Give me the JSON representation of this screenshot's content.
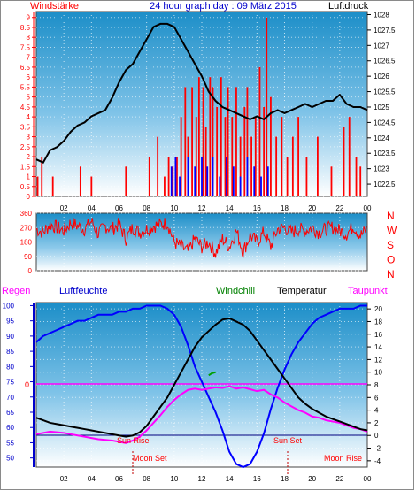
{
  "chart_data": [
    {
      "type": "line",
      "title": "24 hour graph day : 09 März 2015",
      "left_axis_label": "Windstärke",
      "right_axis_label": "Luftdruck",
      "left_ticks": [
        "0",
        "0.5",
        "1",
        "1.5",
        "2",
        "2.5",
        "3",
        "3.5",
        "4",
        "4.5",
        "5",
        "5.5",
        "6",
        "6.5",
        "7",
        "7.5",
        "8",
        "8.5",
        "9"
      ],
      "right_ticks": [
        "1022.5",
        "1023",
        "1023.5",
        "1024",
        "1024.5",
        "1025",
        "1025.5",
        "1026",
        "1026.5",
        "1027",
        "1027.5",
        "1028"
      ],
      "x_ticks": [
        "02",
        "04",
        "06",
        "08",
        "10",
        "12",
        "14",
        "16",
        "18",
        "20",
        "22",
        "00"
      ],
      "ylim_left": [
        0,
        9.3
      ],
      "ylim_right": [
        1022.1,
        1028.1
      ],
      "series": [
        {
          "name": "Luftdruck",
          "axis": "right",
          "x": [
            0,
            0.5,
            1,
            1.5,
            2,
            2.5,
            3,
            3.5,
            4,
            4.5,
            5,
            5.5,
            6,
            6.5,
            7,
            7.5,
            8,
            8.5,
            9,
            9.5,
            10,
            10.5,
            11,
            11.5,
            12,
            12.5,
            13,
            13.5,
            14,
            14.5,
            15,
            15.5,
            16,
            16.5,
            17,
            17.5,
            18,
            18.5,
            19,
            19.5,
            20,
            20.5,
            21,
            21.5,
            22,
            22.5,
            23,
            23.5,
            24
          ],
          "values": [
            1023.3,
            1023.2,
            1023.6,
            1023.7,
            1023.9,
            1024.2,
            1024.4,
            1024.5,
            1024.7,
            1024.8,
            1024.9,
            1025.3,
            1025.8,
            1026.2,
            1026.4,
            1026.8,
            1027.2,
            1027.6,
            1027.7,
            1027.7,
            1027.6,
            1027.2,
            1026.8,
            1026.4,
            1026.0,
            1025.5,
            1025.2,
            1025.0,
            1024.9,
            1024.8,
            1024.7,
            1024.6,
            1024.7,
            1024.6,
            1024.8,
            1024.9,
            1024.8,
            1024.9,
            1025.0,
            1025.1,
            1025.0,
            1025.1,
            1025.2,
            1025.2,
            1025.4,
            1025.1,
            1025.0,
            1025.0,
            1024.9
          ]
        },
        {
          "name": "Windstärke",
          "axis": "left",
          "hours": [
            0.1,
            0.4,
            1.2,
            3.2,
            4.0,
            6.5,
            8.2,
            8.8,
            9.3,
            9.6,
            9.9,
            10.2,
            10.5,
            10.8,
            11.0,
            11.3,
            11.6,
            11.8,
            12.1,
            12.3,
            12.6,
            12.8,
            13.1,
            13.4,
            13.7,
            13.9,
            14.2,
            14.5,
            14.8,
            15.1,
            15.3,
            15.6,
            15.9,
            16.2,
            16.5,
            16.7,
            17.0,
            17.4,
            17.8,
            18.2,
            18.6,
            19.0,
            19.6,
            20.4,
            21.4,
            22.3,
            22.7,
            23.2,
            23.5
          ],
          "values": [
            1.0,
            2.0,
            1.0,
            1.5,
            1.0,
            1.5,
            2.0,
            3.0,
            1.0,
            2.0,
            1.5,
            2.0,
            4.0,
            5.5,
            3.0,
            5.5,
            4.0,
            6.0,
            5.5,
            3.5,
            6.0,
            5.5,
            4.5,
            6.0,
            4.0,
            5.5,
            4.0,
            5.5,
            3.0,
            4.5,
            5.5,
            3.0,
            4.0,
            6.5,
            4.5,
            9.0,
            5.0,
            3.0,
            4.0,
            2.0,
            3.0,
            4.0,
            2.0,
            3.0,
            1.5,
            3.5,
            4.0,
            2.0,
            1.5
          ]
        },
        {
          "name": "Windböen",
          "axis": "left",
          "hours": [
            9.8,
            10.1,
            10.4,
            11.0,
            11.5,
            12.0,
            12.4,
            12.8,
            13.3,
            13.8,
            14.3,
            14.8,
            15.3,
            15.8,
            16.3,
            16.8
          ],
          "values": [
            1.5,
            2.0,
            1.0,
            2.0,
            1.5,
            2.0,
            1.5,
            2.0,
            1.0,
            2.0,
            1.5,
            1.0,
            2.0,
            1.5,
            1.0,
            1.5
          ]
        }
      ]
    },
    {
      "type": "scatter",
      "title": "",
      "left_ticks": [
        "0",
        "90",
        "180",
        "270",
        "360"
      ],
      "right_labels": [
        "N",
        "W",
        "S",
        "O",
        "N"
      ],
      "x_ticks": [
        "02",
        "04",
        "06",
        "08",
        "10",
        "12",
        "14",
        "16",
        "18",
        "20",
        "22",
        "00"
      ],
      "ylim": [
        0,
        360
      ],
      "series": [
        {
          "name": "Windrichtung",
          "x": [
            0,
            0.5,
            1,
            1.5,
            2,
            2.5,
            3,
            3.5,
            4,
            4.5,
            5,
            5.5,
            6,
            6.5,
            7,
            7.5,
            8,
            8.5,
            9,
            9.5,
            10,
            10.5,
            11,
            11.5,
            12,
            12.5,
            13,
            13.5,
            14,
            14.5,
            15,
            15.5,
            16,
            16.5,
            17,
            17.5,
            18,
            18.5,
            19,
            19.5,
            20,
            20.5,
            21,
            21.5,
            22,
            22.5,
            23,
            23.5,
            24
          ],
          "values": [
            260,
            240,
            290,
            270,
            250,
            300,
            280,
            260,
            310,
            230,
            280,
            260,
            290,
            200,
            270,
            240,
            260,
            280,
            290,
            300,
            180,
            150,
            120,
            200,
            150,
            180,
            110,
            200,
            150,
            250,
            120,
            220,
            180,
            240,
            150,
            260,
            270,
            240,
            260,
            250,
            270,
            240,
            260,
            270,
            250,
            230,
            280,
            220,
            260
          ]
        }
      ]
    },
    {
      "type": "line",
      "left_axis_label": "Regen",
      "legend": [
        "Luftfeuchte",
        "Windchill",
        "Temperatur",
        "Taupunkt"
      ],
      "left_ticks": [
        "50",
        "55",
        "60",
        "65",
        "70",
        "75",
        "80",
        "85",
        "90",
        "95",
        "100"
      ],
      "right_ticks": [
        "-4",
        "-2",
        "0",
        "2",
        "4",
        "6",
        "8",
        "10",
        "12",
        "14",
        "16",
        "18",
        "20"
      ],
      "rain_zero_label": "0",
      "x_ticks": [
        "02",
        "04",
        "06",
        "08",
        "10",
        "12",
        "14",
        "16",
        "18",
        "20",
        "22",
        "00"
      ],
      "ylim_left": [
        47,
        101
      ],
      "ylim_right": [
        -5,
        21
      ],
      "annotations": [
        {
          "text": "Sun Rise",
          "hour": 6.9
        },
        {
          "text": "Sun Set",
          "hour": 18.3
        },
        {
          "text": "Moon Set",
          "hour": 6.8
        },
        {
          "text": "Moon Rise",
          "hour": 22.2
        }
      ],
      "series": [
        {
          "name": "Luftfeuchte",
          "axis": "left",
          "x": [
            0,
            0.5,
            1,
            1.5,
            2,
            2.5,
            3,
            3.5,
            4,
            4.5,
            5,
            5.5,
            6,
            6.5,
            7,
            7.5,
            8,
            8.5,
            9,
            9.5,
            10,
            10.5,
            11,
            11.5,
            12,
            12.5,
            13,
            13.5,
            14,
            14.5,
            15,
            15.5,
            16,
            16.5,
            17,
            17.5,
            18,
            18.5,
            19,
            19.5,
            20,
            20.5,
            21,
            21.5,
            22,
            22.5,
            23,
            23.5,
            24
          ],
          "values": [
            88,
            90,
            91,
            92,
            93,
            94,
            95,
            95,
            96,
            97,
            97,
            97,
            98,
            98,
            99,
            99,
            100,
            100,
            100,
            99,
            97,
            93,
            87,
            80,
            75,
            70,
            65,
            59,
            52,
            48,
            47,
            48,
            52,
            58,
            66,
            73,
            79,
            84,
            88,
            91,
            94,
            96,
            97,
            98,
            99,
            99,
            99,
            100,
            100
          ]
        },
        {
          "name": "Temperatur",
          "axis": "right",
          "x": [
            0,
            0.5,
            1,
            1.5,
            2,
            2.5,
            3,
            3.5,
            4,
            4.5,
            5,
            5.5,
            6,
            6.5,
            7,
            7.5,
            8,
            8.5,
            9,
            9.5,
            10,
            10.5,
            11,
            11.5,
            12,
            12.5,
            13,
            13.5,
            14,
            14.5,
            15,
            15.5,
            16,
            16.5,
            17,
            17.5,
            18,
            18.5,
            19,
            19.5,
            20,
            20.5,
            21,
            21.5,
            22,
            22.5,
            23,
            23.5,
            24
          ],
          "values": [
            2.8,
            2.4,
            2.0,
            1.8,
            1.6,
            1.4,
            1.2,
            1.0,
            0.8,
            0.6,
            0.4,
            0.2,
            0.0,
            -0.2,
            0.0,
            0.5,
            1.5,
            3.0,
            4.5,
            6.0,
            8.0,
            10.0,
            12.0,
            14.0,
            15.5,
            16.5,
            17.5,
            18.3,
            18.5,
            18.0,
            17.5,
            16.5,
            15.0,
            13.5,
            12.0,
            10.5,
            9.0,
            7.5,
            6.0,
            5.0,
            4.2,
            3.6,
            3.0,
            2.6,
            2.2,
            1.8,
            1.4,
            1.0,
            0.8
          ]
        },
        {
          "name": "Windchill",
          "axis": "right",
          "x": [
            12.5,
            12.7,
            13.0
          ],
          "values": [
            9.5,
            9.8,
            10.0
          ]
        },
        {
          "name": "Taupunkt",
          "axis": "right",
          "x": [
            0,
            0.5,
            1,
            1.5,
            2,
            2.5,
            3,
            3.5,
            4,
            4.5,
            5,
            5.5,
            6,
            6.5,
            7,
            7.5,
            8,
            8.5,
            9,
            9.5,
            10,
            10.5,
            11,
            11.5,
            12,
            12.5,
            13,
            13.5,
            14,
            14.5,
            15,
            15.5,
            16,
            16.5,
            17,
            17.5,
            18,
            18.5,
            19,
            19.5,
            20,
            20.5,
            21,
            21.5,
            22,
            22.5,
            23,
            23.5,
            24
          ],
          "values": [
            0.2,
            0.4,
            0.6,
            0.5,
            0.4,
            0.2,
            0.0,
            -0.2,
            -0.4,
            -0.6,
            -0.7,
            -0.8,
            -1.0,
            -1.2,
            -0.8,
            -0.2,
            0.8,
            2.0,
            3.2,
            4.5,
            5.6,
            6.5,
            7.2,
            7.4,
            7.2,
            7.4,
            7.6,
            7.5,
            7.8,
            7.4,
            7.6,
            7.3,
            7.0,
            7.2,
            6.5,
            6.0,
            5.2,
            4.6,
            4.0,
            3.6,
            3.0,
            2.8,
            2.4,
            2.2,
            2.0,
            1.6,
            1.2,
            1.0,
            0.6
          ]
        }
      ]
    }
  ]
}
